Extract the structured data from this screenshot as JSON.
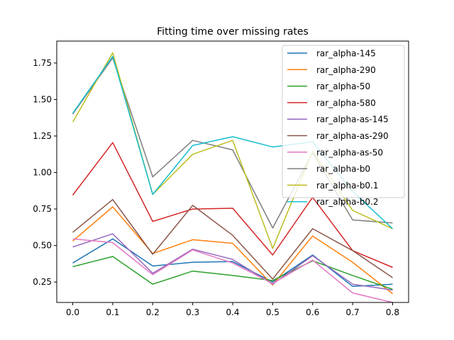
{
  "chart_data": {
    "type": "line",
    "title": "Fitting time over missing rates",
    "xlabel": "",
    "ylabel": "",
    "x": [
      0.0,
      0.1,
      0.2,
      0.3,
      0.4,
      0.5,
      0.6,
      0.7,
      0.8
    ],
    "xticks": [
      "0.0",
      "0.1",
      "0.2",
      "0.3",
      "0.4",
      "0.5",
      "0.6",
      "0.7",
      "0.8"
    ],
    "yticks": [
      "0.25",
      "0.50",
      "0.75",
      "1.00",
      "1.25",
      "1.50",
      "1.75"
    ],
    "ytick_values": [
      0.25,
      0.5,
      0.75,
      1.0,
      1.25,
      1.5,
      1.75
    ],
    "xlim": [
      -0.04,
      0.84
    ],
    "ylim": [
      0.11,
      1.9
    ],
    "grid": false,
    "legend_position": "top-right",
    "series": [
      {
        "name": "rar_alpha-145",
        "color": "#1f77b4",
        "values": [
          0.38,
          0.545,
          0.36,
          0.385,
          0.39,
          0.25,
          0.435,
          0.22,
          0.235
        ]
      },
      {
        "name": "rar_alpha-290",
        "color": "#ff7f0e",
        "values": [
          0.53,
          0.765,
          0.445,
          0.54,
          0.515,
          0.23,
          0.565,
          0.385,
          0.17
        ]
      },
      {
        "name": "rar_alpha-50",
        "color": "#2ca02c",
        "values": [
          0.355,
          0.425,
          0.235,
          0.325,
          0.295,
          0.26,
          0.395,
          0.295,
          0.2
        ]
      },
      {
        "name": "rar_alpha-580",
        "color": "#d62728",
        "values": [
          0.845,
          1.205,
          0.665,
          0.75,
          0.755,
          0.435,
          0.83,
          0.465,
          0.35
        ]
      },
      {
        "name": "rar_alpha-as-145",
        "color": "#9467bd",
        "values": [
          0.49,
          0.58,
          0.31,
          0.475,
          0.405,
          0.235,
          0.43,
          0.235,
          0.195
        ]
      },
      {
        "name": "rar_alpha-as-290",
        "color": "#8c564b",
        "values": [
          0.59,
          0.815,
          0.44,
          0.775,
          0.57,
          0.27,
          0.615,
          0.465,
          0.28
        ]
      },
      {
        "name": "rar_alpha-as-50",
        "color": "#e377c2",
        "values": [
          0.545,
          0.52,
          0.3,
          0.47,
          0.38,
          0.24,
          0.4,
          0.175,
          0.11
        ]
      },
      {
        "name": "rar_alpha-b0",
        "color": "#7f7f7f",
        "values": [
          1.4,
          1.785,
          0.97,
          1.22,
          1.155,
          0.62,
          1.135,
          0.675,
          0.655
        ]
      },
      {
        "name": "rar_alpha-b0.1",
        "color": "#bcbd22",
        "values": [
          1.345,
          1.82,
          0.85,
          1.125,
          1.22,
          0.48,
          1.145,
          0.74,
          0.615
        ]
      },
      {
        "name": "rar_alpha-b0.2",
        "color": "#17becf",
        "values": [
          1.405,
          1.795,
          0.85,
          1.185,
          1.245,
          1.175,
          1.21,
          0.87,
          0.615
        ]
      }
    ]
  }
}
